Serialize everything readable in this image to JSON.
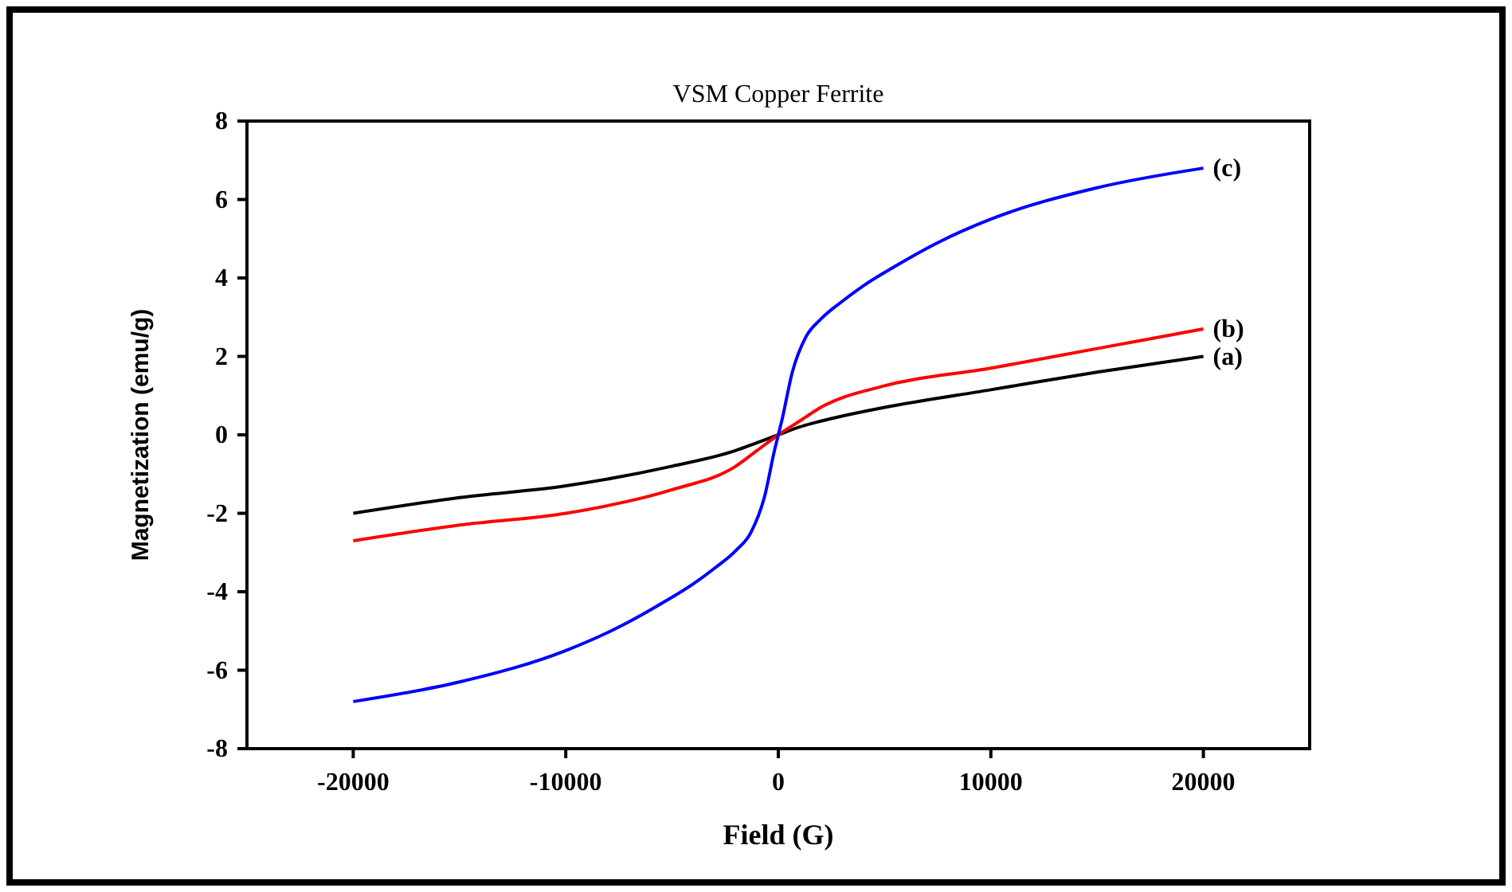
{
  "chart_data": {
    "type": "line",
    "title": "VSM Copper Ferrite",
    "xlabel": "Field (G)",
    "ylabel": "Magnetization (emu/g)",
    "xlim": [
      -25000,
      25000
    ],
    "xticks": [
      -20000,
      -10000,
      0,
      10000,
      20000
    ],
    "ylim": [
      -8,
      8
    ],
    "yticks": [
      -8,
      -6,
      -4,
      -2,
      0,
      2,
      4,
      6,
      8
    ],
    "grid": false,
    "marker": "none",
    "line_style": "solid",
    "series": [
      {
        "name": "(a)",
        "color": "#000000",
        "x": [
          -20000,
          -15000,
          -10000,
          -5000,
          -2000,
          -1000,
          0,
          1000,
          2000,
          5000,
          10000,
          15000,
          20000
        ],
        "values": [
          -2.0,
          -1.6,
          -1.3,
          -0.8,
          -0.4,
          -0.2,
          0,
          0.2,
          0.35,
          0.7,
          1.15,
          1.6,
          2.0
        ]
      },
      {
        "name": "(b)",
        "color": "#ff0000",
        "x": [
          -20000,
          -15000,
          -10000,
          -5000,
          -2000,
          -1000,
          0,
          1000,
          2000,
          5000,
          10000,
          15000,
          20000
        ],
        "values": [
          -2.7,
          -2.3,
          -2.0,
          -1.4,
          -0.8,
          -0.4,
          0,
          0.35,
          0.7,
          1.25,
          1.7,
          2.2,
          2.7
        ]
      },
      {
        "name": "(c)",
        "color": "#0000ff",
        "x": [
          -20000,
          -15000,
          -10000,
          -7500,
          -5500,
          -4000,
          -3000,
          -2000,
          -1300,
          -660,
          -160,
          0,
          160,
          660,
          1300,
          2000,
          3000,
          4000,
          5500,
          7500,
          10000,
          15000,
          20000
        ],
        "values": [
          -6.8,
          -6.3,
          -5.5,
          -4.9,
          -4.3,
          -3.8,
          -3.4,
          -2.95,
          -2.5,
          -1.6,
          -0.35,
          0,
          0.35,
          1.6,
          2.5,
          2.95,
          3.4,
          3.8,
          4.3,
          4.9,
          5.5,
          6.3,
          6.8
        ]
      }
    ]
  }
}
